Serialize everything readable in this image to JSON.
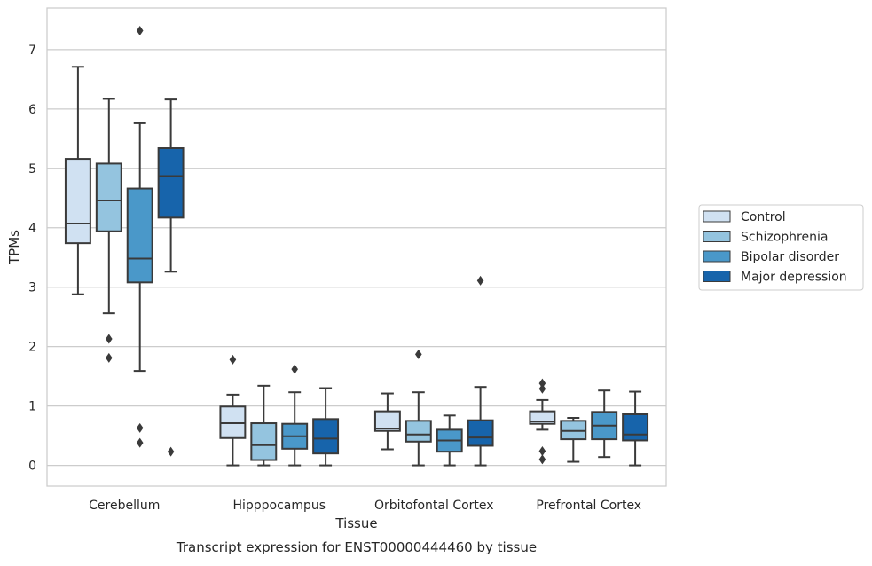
{
  "chart_data": {
    "type": "box",
    "title": "",
    "caption": "Transcript expression for ENST00000444460 by tissue",
    "xlabel": "Tissue",
    "ylabel": "TPMs",
    "ylim": [
      -0.35,
      7.7
    ],
    "yticks": [
      0,
      1,
      2,
      3,
      4,
      5,
      6,
      7
    ],
    "grid": true,
    "legend_position": "right",
    "categories": [
      "Cerebellum",
      "Hipppocampus",
      "Orbitofontal Cortex",
      "Prefrontal Cortex"
    ],
    "series": [
      {
        "name": "Control",
        "color": "#d0e1f2",
        "boxes": [
          {
            "whisker_low": 2.88,
            "q1": 3.74,
            "median": 4.07,
            "q3": 5.16,
            "whisker_high": 6.71,
            "outliers": []
          },
          {
            "whisker_low": 0.0,
            "q1": 0.46,
            "median": 0.71,
            "q3": 0.99,
            "whisker_high": 1.19,
            "outliers": [
              1.78
            ]
          },
          {
            "whisker_low": 0.27,
            "q1": 0.58,
            "median": 0.62,
            "q3": 0.91,
            "whisker_high": 1.21,
            "outliers": []
          },
          {
            "whisker_low": 0.6,
            "q1": 0.7,
            "median": 0.74,
            "q3": 0.91,
            "whisker_high": 1.1,
            "outliers": [
              0.1,
              0.24,
              1.29,
              1.38
            ]
          }
        ]
      },
      {
        "name": "Schizophrenia",
        "color": "#94c4df",
        "boxes": [
          {
            "whisker_low": 2.56,
            "q1": 3.94,
            "median": 4.46,
            "q3": 5.08,
            "whisker_high": 6.17,
            "outliers": [
              1.81,
              2.13
            ]
          },
          {
            "whisker_low": 0.0,
            "q1": 0.09,
            "median": 0.34,
            "q3": 0.71,
            "whisker_high": 1.34,
            "outliers": []
          },
          {
            "whisker_low": 0.0,
            "q1": 0.4,
            "median": 0.52,
            "q3": 0.75,
            "whisker_high": 1.23,
            "outliers": [
              1.87
            ]
          },
          {
            "whisker_low": 0.06,
            "q1": 0.44,
            "median": 0.58,
            "q3": 0.75,
            "whisker_high": 0.8,
            "outliers": []
          }
        ]
      },
      {
        "name": "Bipolar disorder",
        "color": "#4a98c9",
        "boxes": [
          {
            "whisker_low": 1.59,
            "q1": 3.08,
            "median": 3.48,
            "q3": 4.66,
            "whisker_high": 5.76,
            "outliers": [
              0.38,
              0.63,
              7.32
            ]
          },
          {
            "whisker_low": 0.0,
            "q1": 0.28,
            "median": 0.49,
            "q3": 0.7,
            "whisker_high": 1.23,
            "outliers": [
              1.62
            ]
          },
          {
            "whisker_low": 0.0,
            "q1": 0.23,
            "median": 0.42,
            "q3": 0.6,
            "whisker_high": 0.84,
            "outliers": []
          },
          {
            "whisker_low": 0.14,
            "q1": 0.44,
            "median": 0.67,
            "q3": 0.9,
            "whisker_high": 1.26,
            "outliers": []
          }
        ]
      },
      {
        "name": "Major depression",
        "color": "#1764ab",
        "boxes": [
          {
            "whisker_low": 3.26,
            "q1": 4.17,
            "median": 4.87,
            "q3": 5.34,
            "whisker_high": 6.16,
            "outliers": [
              0.23
            ]
          },
          {
            "whisker_low": 0.0,
            "q1": 0.2,
            "median": 0.45,
            "q3": 0.78,
            "whisker_high": 1.3,
            "outliers": []
          },
          {
            "whisker_low": 0.0,
            "q1": 0.33,
            "median": 0.47,
            "q3": 0.76,
            "whisker_high": 1.32,
            "outliers": [
              3.11
            ]
          },
          {
            "whisker_low": 0.0,
            "q1": 0.42,
            "median": 0.52,
            "q3": 0.86,
            "whisker_high": 1.24,
            "outliers": []
          }
        ]
      }
    ]
  }
}
